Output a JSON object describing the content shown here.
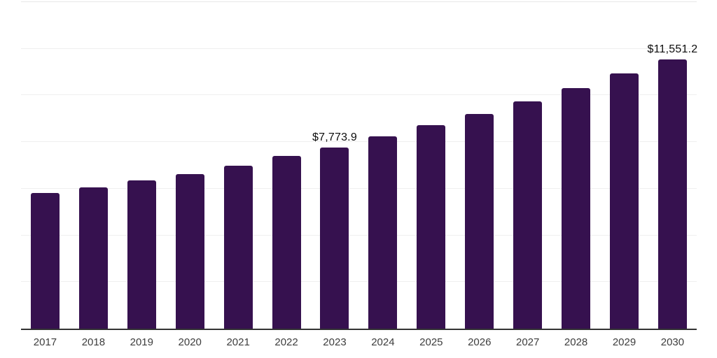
{
  "page": {
    "background": "#ffffff"
  },
  "chart_data": {
    "type": "bar",
    "title": "",
    "xlabel": "",
    "ylabel": "",
    "categories": [
      "2017",
      "2018",
      "2019",
      "2020",
      "2021",
      "2022",
      "2023",
      "2024",
      "2025",
      "2026",
      "2027",
      "2028",
      "2029",
      "2030"
    ],
    "values": [
      5820,
      6070,
      6350,
      6620,
      6990,
      7400,
      7773.9,
      8240,
      8710,
      9210,
      9750,
      10320,
      10940,
      11551.2
    ],
    "ylim": [
      0,
      14000
    ],
    "gridline_step": 2000,
    "grid": true,
    "legend": false,
    "bar_color": "#36114F",
    "axis_line_color": "#333333",
    "gridline_color": "#efefef",
    "value_label_color": "#0d0d0d",
    "tick_label_color": "#3d3d3d",
    "annotations": [
      {
        "category": "2023",
        "text": "$7,773.9"
      },
      {
        "category": "2030",
        "text": "$11,551.2"
      }
    ]
  }
}
